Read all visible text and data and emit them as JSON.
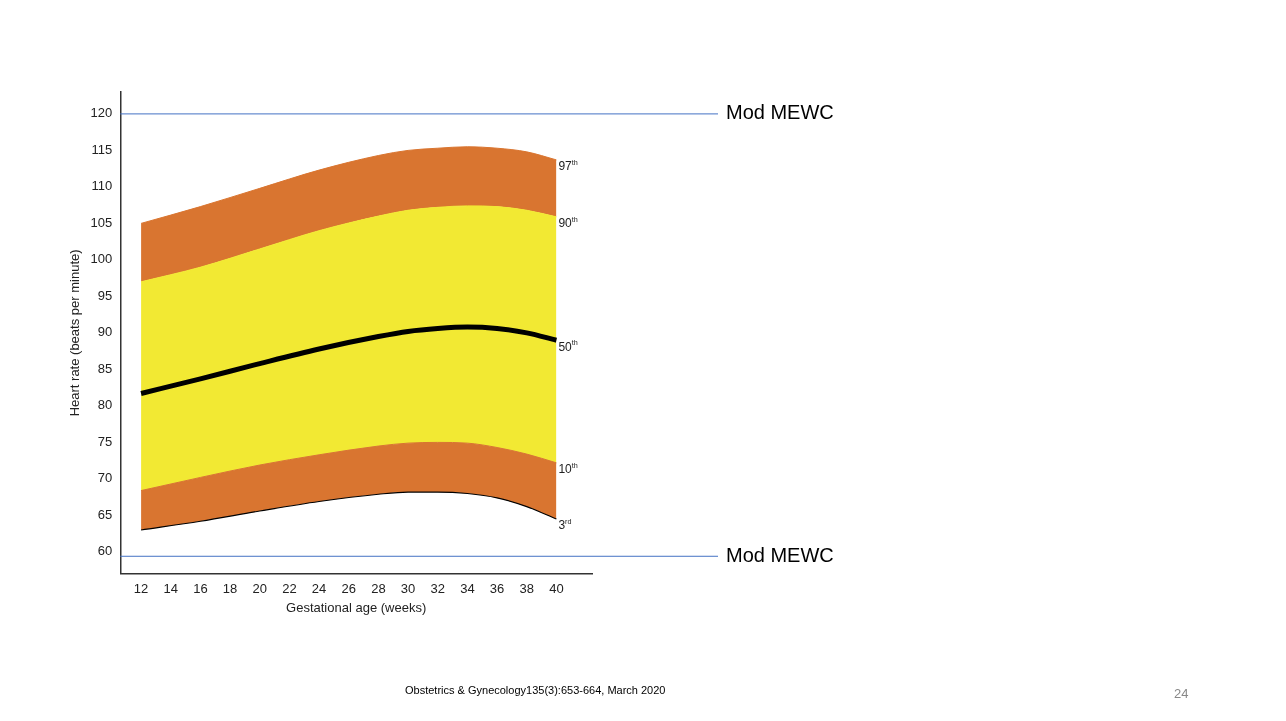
{
  "chart_data": {
    "type": "line",
    "xlabel": "Gestational age (weeks)",
    "ylabel": "Heart rate (beats per minute)",
    "x": [
      12,
      16,
      20,
      24,
      28,
      30,
      32,
      34,
      36,
      38,
      40
    ],
    "series": [
      {
        "name": "3$^{rd}$",
        "type": "line",
        "color": "#000000",
        "values": [
          63,
          64.2,
          65.6,
          66.9,
          67.9,
          68.2,
          68.2,
          68,
          67.4,
          66.2,
          64.5
        ]
      },
      {
        "name": "10$^{th}$",
        "type": "area",
        "color": "#d97530",
        "values": [
          68.4,
          70.2,
          71.9,
          73.3,
          74.5,
          74.9,
          75,
          74.9,
          74.3,
          73.4,
          72.2
        ]
      },
      {
        "name": "90$^{th}$",
        "type": "area",
        "color": "#f2e933",
        "values": [
          97,
          99,
          101.5,
          104,
          106,
          106.8,
          107.2,
          107.4,
          107.3,
          106.8,
          105.9
        ]
      },
      {
        "name": "97$^{th}$",
        "type": "area",
        "color": "#d97530",
        "values": [
          105,
          107.3,
          109.8,
          112.3,
          114.3,
          115,
          115.3,
          115.5,
          115.3,
          114.8,
          113.7
        ]
      },
      {
        "name": "50$^{th}$",
        "type": "line",
        "color": "#000000",
        "values": [
          81.7,
          83.7,
          85.8,
          87.8,
          89.5,
          90.2,
          90.6,
          90.8,
          90.6,
          90,
          89
        ]
      }
    ],
    "xlim": [
      10.6,
      42.4
    ],
    "xticks": [
      12,
      14,
      16,
      18,
      20,
      22,
      24,
      26,
      28,
      30,
      32,
      34,
      36,
      38,
      40
    ],
    "ylim": [
      57,
      123
    ],
    "yticks": [
      60,
      65,
      70,
      75,
      80,
      85,
      90,
      95,
      100,
      105,
      110,
      115,
      120
    ],
    "ref_lines": [
      {
        "axis": "y",
        "value": 120,
        "label": "Mod MEWC",
        "color": "#4472c4"
      },
      {
        "axis": "y",
        "value": 59.4,
        "label": "Mod MEWC",
        "color": "#4472c4"
      }
    ],
    "annotations": [
      "Obstetrics & Gynecology135(3):653-664, March 2020",
      "24"
    ],
    "grid": false,
    "legend": false,
    "marker": "none"
  }
}
